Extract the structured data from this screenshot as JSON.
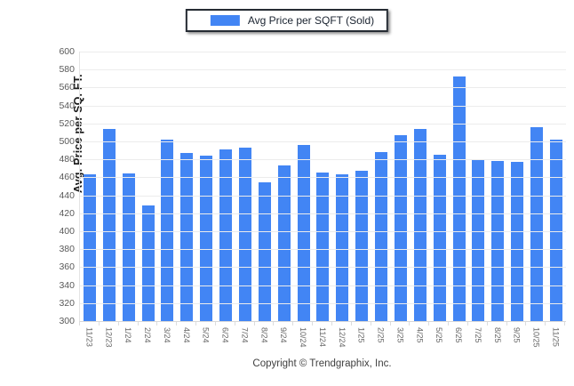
{
  "legend": {
    "swatch_color": "#4285f4"
  },
  "footer": {
    "copyright": "Copyright © Trendgraphix, Inc."
  },
  "chart_data": {
    "type": "bar",
    "title": "Avg Price per SQFT (Sold)",
    "xlabel": "",
    "ylabel": "Avg. Price per SQ. FT.",
    "ylim": [
      300,
      600
    ],
    "ytick_step": 20,
    "grid": true,
    "legend_position": "top-center",
    "bar_color": "#4285f4",
    "categories": [
      "11/23",
      "12/23",
      "1/24",
      "2/24",
      "3/24",
      "4/24",
      "5/24",
      "6/24",
      "7/24",
      "8/24",
      "9/24",
      "10/24",
      "11/24",
      "12/24",
      "1/25",
      "2/25",
      "3/25",
      "4/25",
      "5/25",
      "6/25",
      "7/25",
      "8/25",
      "9/25",
      "10/25",
      "11/25"
    ],
    "values": [
      463,
      514,
      464,
      429,
      502,
      487,
      484,
      491,
      493,
      454,
      473,
      496,
      465,
      463,
      467,
      488,
      507,
      514,
      485,
      572,
      480,
      478,
      477,
      516,
      502
    ]
  }
}
